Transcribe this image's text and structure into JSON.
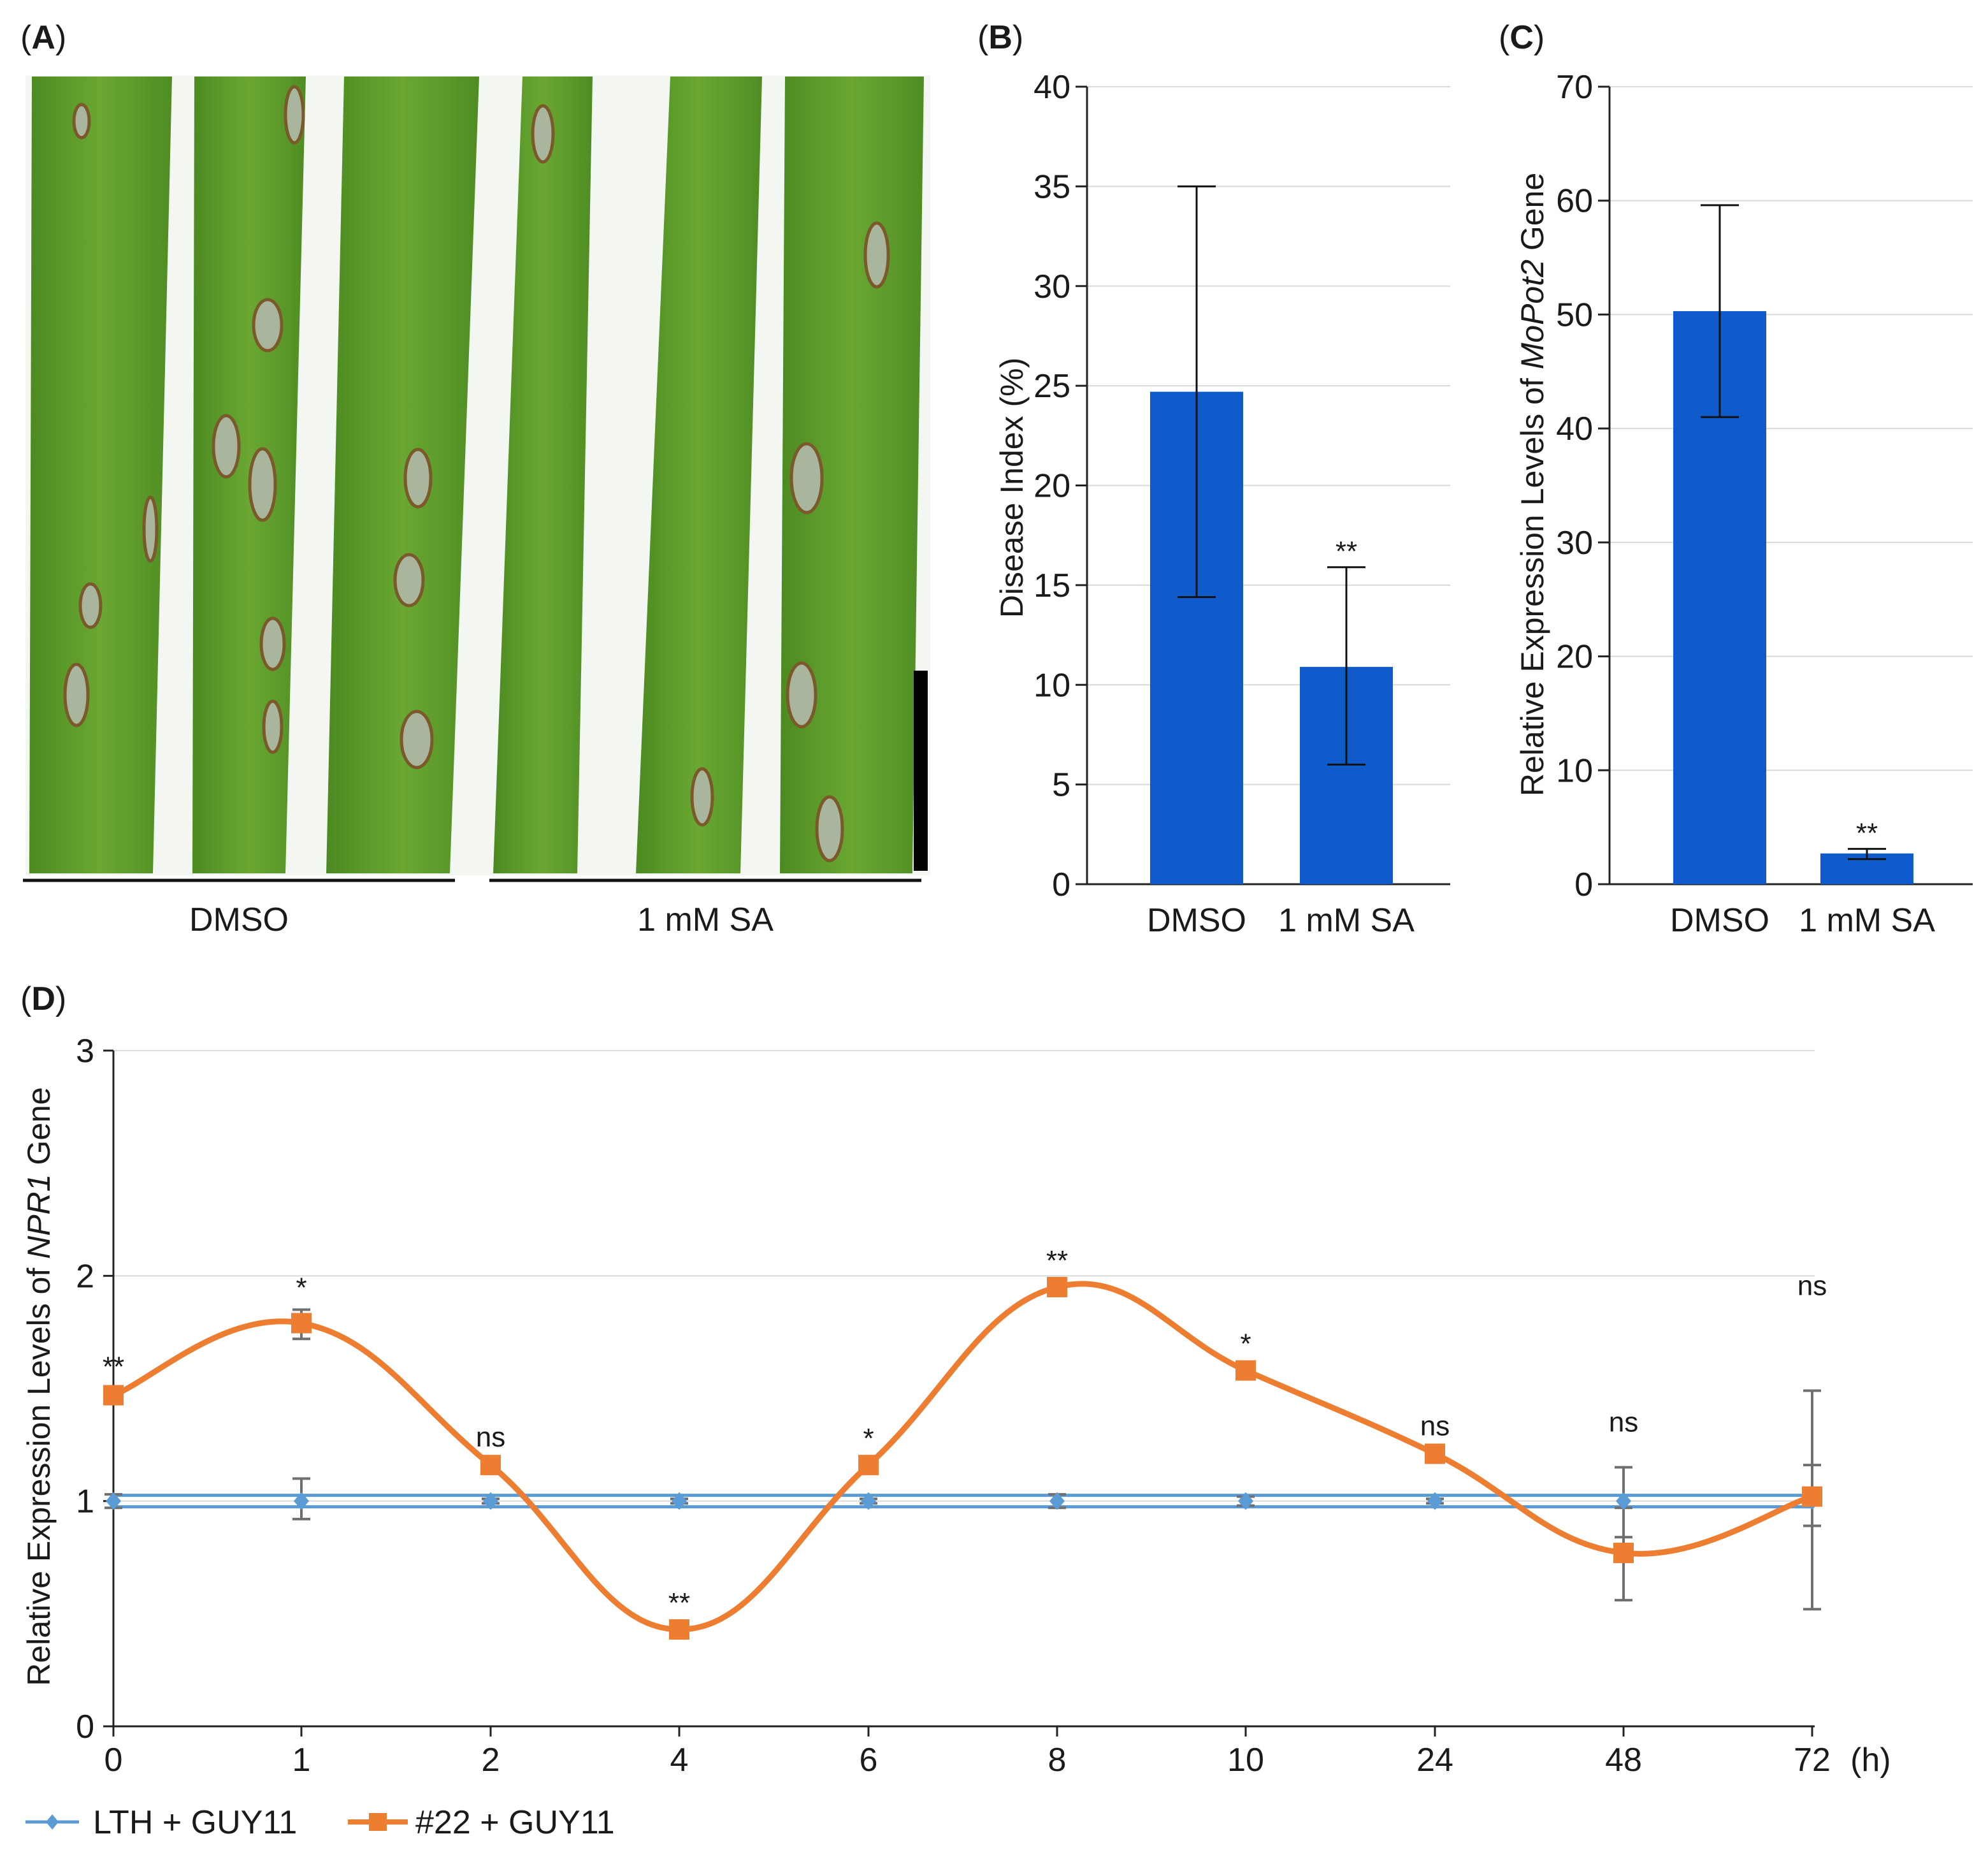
{
  "panels": {
    "A": {
      "letter": "A"
    },
    "B": {
      "letter": "B"
    },
    "C": {
      "letter": "C"
    },
    "D": {
      "letter": "D"
    }
  },
  "photo": {
    "groups": [
      "DMSO",
      "1 mM SA"
    ]
  },
  "colors": {
    "bar": "#0f5bcb",
    "series_lth": "#5b9bd5",
    "series_22": "#ed7d31",
    "leaf": "#5f9b2c",
    "lesion": "#a9b59c"
  },
  "chart_data": [
    {
      "id": "B",
      "type": "bar",
      "title": "",
      "categories": [
        "DMSO",
        "1 mM SA"
      ],
      "values": [
        24.7,
        10.9
      ],
      "err_low": [
        14.4,
        6.0
      ],
      "err_high": [
        35.0,
        15.9
      ],
      "significance": [
        "",
        "**"
      ],
      "ylabel": "Disease Index (%)",
      "ylim": [
        0,
        40
      ],
      "yticks": [
        0,
        5,
        10,
        15,
        20,
        25,
        30,
        35,
        40
      ],
      "grid": true
    },
    {
      "id": "C",
      "type": "bar",
      "title": "",
      "categories": [
        "DMSO",
        "1 mM SA"
      ],
      "values": [
        50.3,
        2.7
      ],
      "err_low": [
        41.0,
        2.2
      ],
      "err_high": [
        59.6,
        3.1
      ],
      "significance": [
        "",
        "**"
      ],
      "ylabel_prefix": "Relative Expression Levels of ",
      "ylabel_gene": "MoPot2",
      "ylabel_suffix": " Gene",
      "ylim": [
        0,
        70
      ],
      "yticks": [
        0,
        10,
        20,
        30,
        40,
        50,
        60,
        70
      ],
      "grid": true
    },
    {
      "id": "D",
      "type": "line",
      "title": "",
      "categories": [
        "0",
        "1",
        "2",
        "4",
        "6",
        "8",
        "10",
        "24",
        "48",
        "72"
      ],
      "x_unit": "(h)",
      "series": [
        {
          "name": "LTH + GUY11",
          "values": [
            1.0,
            1.0,
            1.0,
            1.0,
            1.0,
            1.0,
            1.0,
            1.0,
            1.0,
            1.0
          ],
          "err_low": [
            0.97,
            0.92,
            0.99,
            0.99,
            0.99,
            0.97,
            0.98,
            0.99,
            0.84,
            0.89
          ],
          "err_high": [
            1.03,
            1.1,
            1.01,
            1.01,
            1.01,
            1.03,
            1.02,
            1.01,
            1.15,
            1.16
          ]
        },
        {
          "name": "#22 + GUY11",
          "values": [
            1.47,
            1.79,
            1.16,
            0.43,
            1.16,
            1.95,
            1.58,
            1.21,
            0.77,
            1.02
          ],
          "err_low": [
            1.45,
            1.72,
            1.14,
            0.41,
            1.14,
            1.93,
            1.56,
            1.19,
            0.56,
            0.52
          ],
          "err_high": [
            1.49,
            1.85,
            1.18,
            0.45,
            1.18,
            1.97,
            1.6,
            1.23,
            0.97,
            1.49
          ]
        }
      ],
      "significance": [
        "**",
        "*",
        "ns",
        "**",
        "*",
        "**",
        "*",
        "ns",
        "ns",
        "ns"
      ],
      "ylabel_prefix": "Relative Expression Levels of ",
      "ylabel_gene": "NPR1",
      "ylabel_suffix": " Gene",
      "ylim": [
        0,
        3
      ],
      "yticks": [
        0,
        1,
        2,
        3
      ],
      "grid": true,
      "legend": "bottom-left"
    }
  ]
}
